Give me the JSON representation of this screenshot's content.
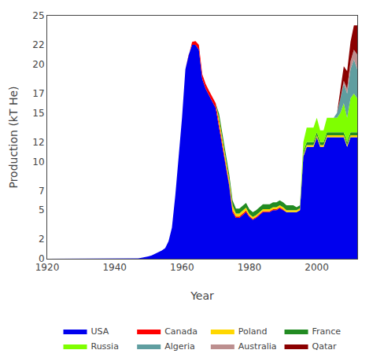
{
  "chart_data": {
    "type": "area",
    "stacked": true,
    "xlabel": "Year",
    "ylabel": "Production (kT He)",
    "x": [
      1920,
      1921,
      1922,
      1923,
      1924,
      1925,
      1926,
      1927,
      1928,
      1929,
      1930,
      1931,
      1932,
      1933,
      1934,
      1935,
      1936,
      1937,
      1938,
      1939,
      1940,
      1941,
      1942,
      1943,
      1944,
      1945,
      1946,
      1947,
      1948,
      1949,
      1950,
      1951,
      1952,
      1953,
      1954,
      1955,
      1956,
      1957,
      1958,
      1959,
      1960,
      1961,
      1962,
      1963,
      1964,
      1965,
      1966,
      1967,
      1968,
      1969,
      1970,
      1971,
      1972,
      1973,
      1974,
      1975,
      1976,
      1977,
      1978,
      1979,
      1980,
      1981,
      1982,
      1983,
      1984,
      1985,
      1986,
      1987,
      1988,
      1989,
      1990,
      1991,
      1992,
      1993,
      1994,
      1995,
      1996,
      1997,
      1998,
      1999,
      2000,
      2001,
      2002,
      2003,
      2004,
      2005,
      2006,
      2007,
      2008,
      2009,
      2010,
      2011,
      2012
    ],
    "series": [
      {
        "name": "USA",
        "color": "#0000ee",
        "values": [
          0.0,
          0.0,
          0.0,
          0.0,
          0.0,
          0.0,
          0.0,
          0.0,
          0.0,
          0.0,
          0.0,
          0.0,
          0.0,
          0.0,
          0.0,
          0.0,
          0.0,
          0.0,
          0.0,
          0.0,
          0.0,
          0.0,
          0.0,
          0.0,
          0.0,
          0.0,
          0.0,
          0.05,
          0.1,
          0.15,
          0.25,
          0.35,
          0.5,
          0.7,
          0.85,
          1.1,
          1.8,
          3.2,
          6.5,
          10.5,
          14.5,
          19.5,
          21.0,
          22.0,
          22.0,
          21.5,
          18.5,
          17.5,
          16.8,
          16.2,
          15.5,
          13.5,
          11.5,
          9.5,
          7.5,
          4.8,
          4.2,
          4.2,
          4.5,
          4.8,
          4.3,
          4.0,
          4.2,
          4.5,
          4.8,
          4.8,
          4.8,
          5.0,
          5.0,
          5.2,
          5.0,
          4.8,
          4.8,
          4.8,
          4.8,
          5.0,
          10.5,
          11.5,
          11.5,
          11.5,
          12.5,
          11.5,
          11.5,
          12.5,
          12.5,
          12.5,
          12.5,
          12.5,
          12.5,
          11.5,
          12.5,
          12.5,
          12.5
        ]
      },
      {
        "name": "Canada",
        "color": "#ff0000",
        "values": [
          0.0,
          0.0,
          0.0,
          0.0,
          0.0,
          0.0,
          0.0,
          0.0,
          0.0,
          0.0,
          0.0,
          0.0,
          0.0,
          0.0,
          0.0,
          0.0,
          0.0,
          0.0,
          0.0,
          0.0,
          0.0,
          0.0,
          0.0,
          0.0,
          0.0,
          0.0,
          0.0,
          0.0,
          0.0,
          0.0,
          0.0,
          0.0,
          0.0,
          0.0,
          0.0,
          0.0,
          0.0,
          0.0,
          0.0,
          0.0,
          0.0,
          0.0,
          0.0,
          0.3,
          0.4,
          0.5,
          0.5,
          0.5,
          0.5,
          0.5,
          0.5,
          0.4,
          0.3,
          0.3,
          0.2,
          0.2,
          0.15,
          0.15,
          0.15,
          0.15,
          0.1,
          0.1,
          0.1,
          0.1,
          0.1,
          0.1,
          0.1,
          0.1,
          0.1,
          0.1,
          0.1,
          0.0,
          0.0,
          0.0,
          0.0,
          0.0,
          0.0,
          0.0,
          0.0,
          0.0,
          0.0,
          0.0,
          0.0,
          0.0,
          0.0,
          0.0,
          0.0,
          0.0,
          0.0,
          0.0,
          0.0,
          0.0,
          0.0
        ]
      },
      {
        "name": "Poland",
        "color": "#ffd700",
        "values": [
          0.0,
          0.0,
          0.0,
          0.0,
          0.0,
          0.0,
          0.0,
          0.0,
          0.0,
          0.0,
          0.0,
          0.0,
          0.0,
          0.0,
          0.0,
          0.0,
          0.0,
          0.0,
          0.0,
          0.0,
          0.0,
          0.0,
          0.0,
          0.0,
          0.0,
          0.0,
          0.0,
          0.0,
          0.0,
          0.0,
          0.0,
          0.0,
          0.0,
          0.0,
          0.0,
          0.0,
          0.0,
          0.0,
          0.0,
          0.0,
          0.0,
          0.0,
          0.0,
          0.0,
          0.0,
          0.0,
          0.0,
          0.0,
          0.0,
          0.0,
          0.0,
          0.5,
          0.5,
          0.5,
          0.5,
          0.5,
          0.3,
          0.3,
          0.3,
          0.3,
          0.2,
          0.2,
          0.2,
          0.2,
          0.2,
          0.2,
          0.2,
          0.2,
          0.2,
          0.2,
          0.2,
          0.2,
          0.2,
          0.2,
          0.2,
          0.2,
          0.2,
          0.2,
          0.2,
          0.2,
          0.2,
          0.2,
          0.2,
          0.2,
          0.2,
          0.2,
          0.2,
          0.2,
          0.2,
          0.2,
          0.2,
          0.2,
          0.2
        ]
      },
      {
        "name": "France",
        "color": "#228b22",
        "values": [
          0.0,
          0.0,
          0.0,
          0.0,
          0.0,
          0.0,
          0.0,
          0.0,
          0.0,
          0.0,
          0.0,
          0.0,
          0.0,
          0.0,
          0.0,
          0.0,
          0.0,
          0.0,
          0.0,
          0.0,
          0.0,
          0.0,
          0.0,
          0.0,
          0.0,
          0.0,
          0.0,
          0.0,
          0.0,
          0.0,
          0.0,
          0.0,
          0.0,
          0.0,
          0.0,
          0.0,
          0.0,
          0.0,
          0.0,
          0.0,
          0.0,
          0.0,
          0.0,
          0.0,
          0.0,
          0.0,
          0.0,
          0.0,
          0.0,
          0.0,
          0.0,
          0.5,
          0.5,
          0.5,
          0.5,
          0.5,
          0.5,
          0.5,
          0.5,
          0.5,
          0.5,
          0.5,
          0.5,
          0.5,
          0.5,
          0.5,
          0.5,
          0.5,
          0.5,
          0.5,
          0.5,
          0.5,
          0.5,
          0.5,
          0.3,
          0.3,
          0.3,
          0.3,
          0.3,
          0.3,
          0.3,
          0.3,
          0.3,
          0.3,
          0.3,
          0.3,
          0.3,
          0.3,
          0.3,
          0.3,
          0.3,
          0.3,
          0.3
        ]
      },
      {
        "name": "Russia",
        "color": "#7fff00",
        "values": [
          0.0,
          0.0,
          0.0,
          0.0,
          0.0,
          0.0,
          0.0,
          0.0,
          0.0,
          0.0,
          0.0,
          0.0,
          0.0,
          0.0,
          0.0,
          0.0,
          0.0,
          0.0,
          0.0,
          0.0,
          0.0,
          0.0,
          0.0,
          0.0,
          0.0,
          0.0,
          0.0,
          0.0,
          0.0,
          0.0,
          0.0,
          0.0,
          0.0,
          0.0,
          0.0,
          0.0,
          0.0,
          0.0,
          0.0,
          0.0,
          0.0,
          0.0,
          0.0,
          0.0,
          0.0,
          0.0,
          0.0,
          0.0,
          0.0,
          0.0,
          0.0,
          0.0,
          0.0,
          0.0,
          0.0,
          0.0,
          0.0,
          0.0,
          0.0,
          0.0,
          0.0,
          0.0,
          0.0,
          0.0,
          0.0,
          0.0,
          0.0,
          0.0,
          0.0,
          0.0,
          0.0,
          0.0,
          0.0,
          0.0,
          0.0,
          0.0,
          1.0,
          1.5,
          1.5,
          1.5,
          1.5,
          1.2,
          1.2,
          1.5,
          1.5,
          1.5,
          1.5,
          2.0,
          3.0,
          2.5,
          3.5,
          4.0,
          3.5
        ]
      },
      {
        "name": "Algeria",
        "color": "#5f9ea0",
        "values": [
          0.0,
          0.0,
          0.0,
          0.0,
          0.0,
          0.0,
          0.0,
          0.0,
          0.0,
          0.0,
          0.0,
          0.0,
          0.0,
          0.0,
          0.0,
          0.0,
          0.0,
          0.0,
          0.0,
          0.0,
          0.0,
          0.0,
          0.0,
          0.0,
          0.0,
          0.0,
          0.0,
          0.0,
          0.0,
          0.0,
          0.0,
          0.0,
          0.0,
          0.0,
          0.0,
          0.0,
          0.0,
          0.0,
          0.0,
          0.0,
          0.0,
          0.0,
          0.0,
          0.0,
          0.0,
          0.0,
          0.0,
          0.0,
          0.0,
          0.0,
          0.0,
          0.0,
          0.0,
          0.0,
          0.0,
          0.0,
          0.0,
          0.0,
          0.0,
          0.0,
          0.0,
          0.0,
          0.0,
          0.0,
          0.0,
          0.0,
          0.0,
          0.0,
          0.0,
          0.0,
          0.0,
          0.0,
          0.0,
          0.0,
          0.0,
          0.0,
          0.0,
          0.0,
          0.0,
          0.0,
          0.0,
          0.0,
          0.0,
          0.0,
          0.0,
          0.0,
          0.5,
          1.5,
          2.0,
          2.5,
          3.0,
          3.5,
          3.0
        ]
      },
      {
        "name": "Australia",
        "color": "#bc8f8f",
        "values": [
          0.0,
          0.0,
          0.0,
          0.0,
          0.0,
          0.0,
          0.0,
          0.0,
          0.0,
          0.0,
          0.0,
          0.0,
          0.0,
          0.0,
          0.0,
          0.0,
          0.0,
          0.0,
          0.0,
          0.0,
          0.0,
          0.0,
          0.0,
          0.0,
          0.0,
          0.0,
          0.0,
          0.0,
          0.0,
          0.0,
          0.0,
          0.0,
          0.0,
          0.0,
          0.0,
          0.0,
          0.0,
          0.0,
          0.0,
          0.0,
          0.0,
          0.0,
          0.0,
          0.0,
          0.0,
          0.0,
          0.0,
          0.0,
          0.0,
          0.0,
          0.0,
          0.0,
          0.0,
          0.0,
          0.0,
          0.0,
          0.0,
          0.0,
          0.0,
          0.0,
          0.0,
          0.0,
          0.0,
          0.0,
          0.0,
          0.0,
          0.0,
          0.0,
          0.0,
          0.0,
          0.0,
          0.0,
          0.0,
          0.0,
          0.0,
          0.0,
          0.0,
          0.0,
          0.0,
          0.0,
          0.0,
          0.0,
          0.0,
          0.0,
          0.0,
          0.0,
          0.0,
          0.0,
          0.3,
          0.5,
          0.8,
          1.0,
          1.5
        ]
      },
      {
        "name": "Qatar",
        "color": "#8b0000",
        "values": [
          0.0,
          0.0,
          0.0,
          0.0,
          0.0,
          0.0,
          0.0,
          0.0,
          0.0,
          0.0,
          0.0,
          0.0,
          0.0,
          0.0,
          0.0,
          0.0,
          0.0,
          0.0,
          0.0,
          0.0,
          0.0,
          0.0,
          0.0,
          0.0,
          0.0,
          0.0,
          0.0,
          0.0,
          0.0,
          0.0,
          0.0,
          0.0,
          0.0,
          0.0,
          0.0,
          0.0,
          0.0,
          0.0,
          0.0,
          0.0,
          0.0,
          0.0,
          0.0,
          0.0,
          0.0,
          0.0,
          0.0,
          0.0,
          0.0,
          0.0,
          0.0,
          0.0,
          0.0,
          0.0,
          0.0,
          0.0,
          0.0,
          0.0,
          0.0,
          0.0,
          0.0,
          0.0,
          0.0,
          0.0,
          0.0,
          0.0,
          0.0,
          0.0,
          0.0,
          0.0,
          0.0,
          0.0,
          0.0,
          0.0,
          0.0,
          0.0,
          0.0,
          0.0,
          0.0,
          0.0,
          0.0,
          0.0,
          0.0,
          0.0,
          0.0,
          0.0,
          0.0,
          0.8,
          1.5,
          1.8,
          2.0,
          2.5,
          3.0
        ]
      }
    ],
    "xlim": [
      1920,
      2012
    ],
    "xticks": [
      1920,
      1940,
      1960,
      1980,
      2000
    ],
    "ylim": [
      0,
      25
    ],
    "yticks": [
      0,
      2,
      5,
      7,
      10,
      12,
      15,
      17,
      20,
      22,
      25
    ],
    "grid": false,
    "legend": "bottom"
  }
}
